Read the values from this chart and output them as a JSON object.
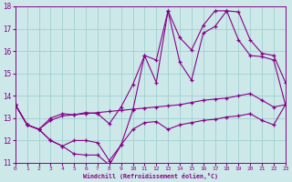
{
  "xlabel": "Windchill (Refroidissement éolien,°C)",
  "bg_color": "#cce8e8",
  "line_color": "#880088",
  "grid_color": "#99cccc",
  "xlim": [
    0,
    23
  ],
  "ylim": [
    11,
    18
  ],
  "yticks": [
    11,
    12,
    13,
    14,
    15,
    16,
    17,
    18
  ],
  "xticks": [
    0,
    1,
    2,
    3,
    4,
    5,
    6,
    7,
    8,
    9,
    10,
    11,
    12,
    13,
    14,
    15,
    16,
    17,
    18,
    19,
    20,
    21,
    22,
    23
  ],
  "series": [
    [
      13.6,
      12.7,
      12.5,
      12.0,
      11.75,
      11.4,
      11.35,
      11.35,
      10.9,
      11.8,
      13.35,
      15.8,
      14.6,
      17.8,
      15.5,
      14.7,
      16.8,
      17.1,
      17.8,
      16.5,
      15.8,
      15.75,
      15.6,
      13.6
    ],
    [
      13.6,
      12.7,
      12.5,
      12.9,
      13.1,
      13.15,
      13.2,
      13.25,
      13.3,
      13.35,
      13.4,
      13.45,
      13.5,
      13.55,
      13.6,
      13.7,
      13.8,
      13.85,
      13.9,
      14.0,
      14.1,
      13.8,
      13.5,
      13.6
    ],
    [
      13.6,
      12.7,
      12.5,
      13.0,
      13.2,
      13.15,
      13.25,
      13.2,
      12.75,
      13.5,
      14.5,
      15.8,
      15.6,
      17.8,
      16.6,
      16.05,
      17.15,
      17.8,
      17.8,
      17.75,
      16.5,
      15.9,
      15.8,
      14.6
    ],
    [
      13.6,
      12.7,
      12.5,
      12.0,
      11.75,
      12.0,
      12.0,
      11.9,
      11.1,
      11.8,
      12.5,
      12.8,
      12.85,
      12.5,
      12.7,
      12.8,
      12.9,
      12.95,
      13.05,
      13.1,
      13.2,
      12.9,
      12.7,
      13.6
    ]
  ]
}
